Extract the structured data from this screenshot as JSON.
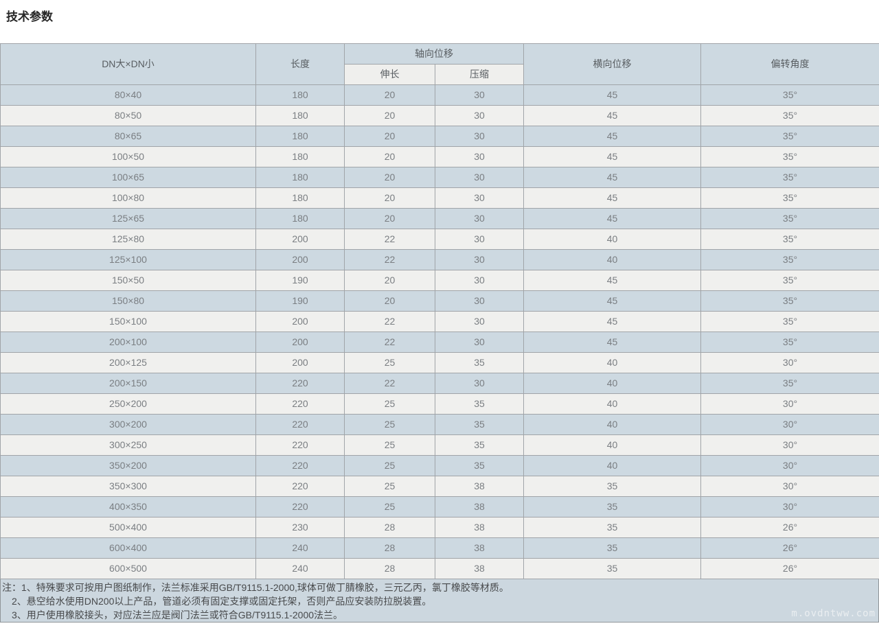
{
  "page": {
    "title": "技术参数",
    "watermark": "m.ovdntww.com"
  },
  "table": {
    "headers": {
      "col_dn": "DN大×DN小",
      "col_length": "长度",
      "col_axial": "轴向位移",
      "col_extend": "伸长",
      "col_compress": "压缩",
      "col_lateral": "横向位移",
      "col_angle": "偏转角度"
    },
    "rows": [
      [
        "80×40",
        "180",
        "20",
        "30",
        "45",
        "35°"
      ],
      [
        "80×50",
        "180",
        "20",
        "30",
        "45",
        "35°"
      ],
      [
        "80×65",
        "180",
        "20",
        "30",
        "45",
        "35°"
      ],
      [
        "100×50",
        "180",
        "20",
        "30",
        "45",
        "35°"
      ],
      [
        "100×65",
        "180",
        "20",
        "30",
        "45",
        "35°"
      ],
      [
        "100×80",
        "180",
        "20",
        "30",
        "45",
        "35°"
      ],
      [
        "125×65",
        "180",
        "20",
        "30",
        "45",
        "35°"
      ],
      [
        "125×80",
        "200",
        "22",
        "30",
        "40",
        "35°"
      ],
      [
        "125×100",
        "200",
        "22",
        "30",
        "40",
        "35°"
      ],
      [
        "150×50",
        "190",
        "20",
        "30",
        "45",
        "35°"
      ],
      [
        "150×80",
        "190",
        "20",
        "30",
        "45",
        "35°"
      ],
      [
        "150×100",
        "200",
        "22",
        "30",
        "45",
        "35°"
      ],
      [
        "200×100",
        "200",
        "22",
        "30",
        "45",
        "35°"
      ],
      [
        "200×125",
        "200",
        "25",
        "35",
        "40",
        "30°"
      ],
      [
        "200×150",
        "220",
        "22",
        "30",
        "40",
        "35°"
      ],
      [
        "250×200",
        "220",
        "25",
        "35",
        "40",
        "30°"
      ],
      [
        "300×200",
        "220",
        "25",
        "35",
        "40",
        "30°"
      ],
      [
        "300×250",
        "220",
        "25",
        "35",
        "40",
        "30°"
      ],
      [
        "350×200",
        "220",
        "25",
        "35",
        "40",
        "30°"
      ],
      [
        "350×300",
        "220",
        "25",
        "38",
        "35",
        "30°"
      ],
      [
        "400×350",
        "220",
        "25",
        "38",
        "35",
        "30°"
      ],
      [
        "500×400",
        "230",
        "28",
        "38",
        "35",
        "26°"
      ],
      [
        "600×400",
        "240",
        "28",
        "38",
        "35",
        "26°"
      ],
      [
        "600×500",
        "240",
        "28",
        "38",
        "35",
        "26°"
      ]
    ]
  },
  "notes": {
    "line1": "注：1、特殊要求可按用户图纸制作，法兰标准采用GB/T9115.1-2000,球体可做丁腈橡胶，三元乙丙，氯丁橡胶等材质。",
    "line2": "2、悬空给水使用DN200以上产品，管道必须有固定支撑或固定托架，否则产品应安装防拉脱装置。",
    "line3": "3、用户使用橡胶接头，对应法兰应是阀门法兰或符合GB/T9115.1-2000法兰。"
  },
  "colors": {
    "row_odd": "#cdd9e1",
    "row_even": "#f0f0ee",
    "header_bg": "#cdd9e1",
    "subheader_bg": "#efefed",
    "border": "#a0a4a8",
    "notes_bg": "#ccd7df",
    "notes_border": "#8f9498",
    "text_data": "#7a7e82",
    "text_header": "#585d61",
    "text_notes": "#47494b",
    "text_title": "#262626",
    "watermark": "#eef1f3"
  }
}
